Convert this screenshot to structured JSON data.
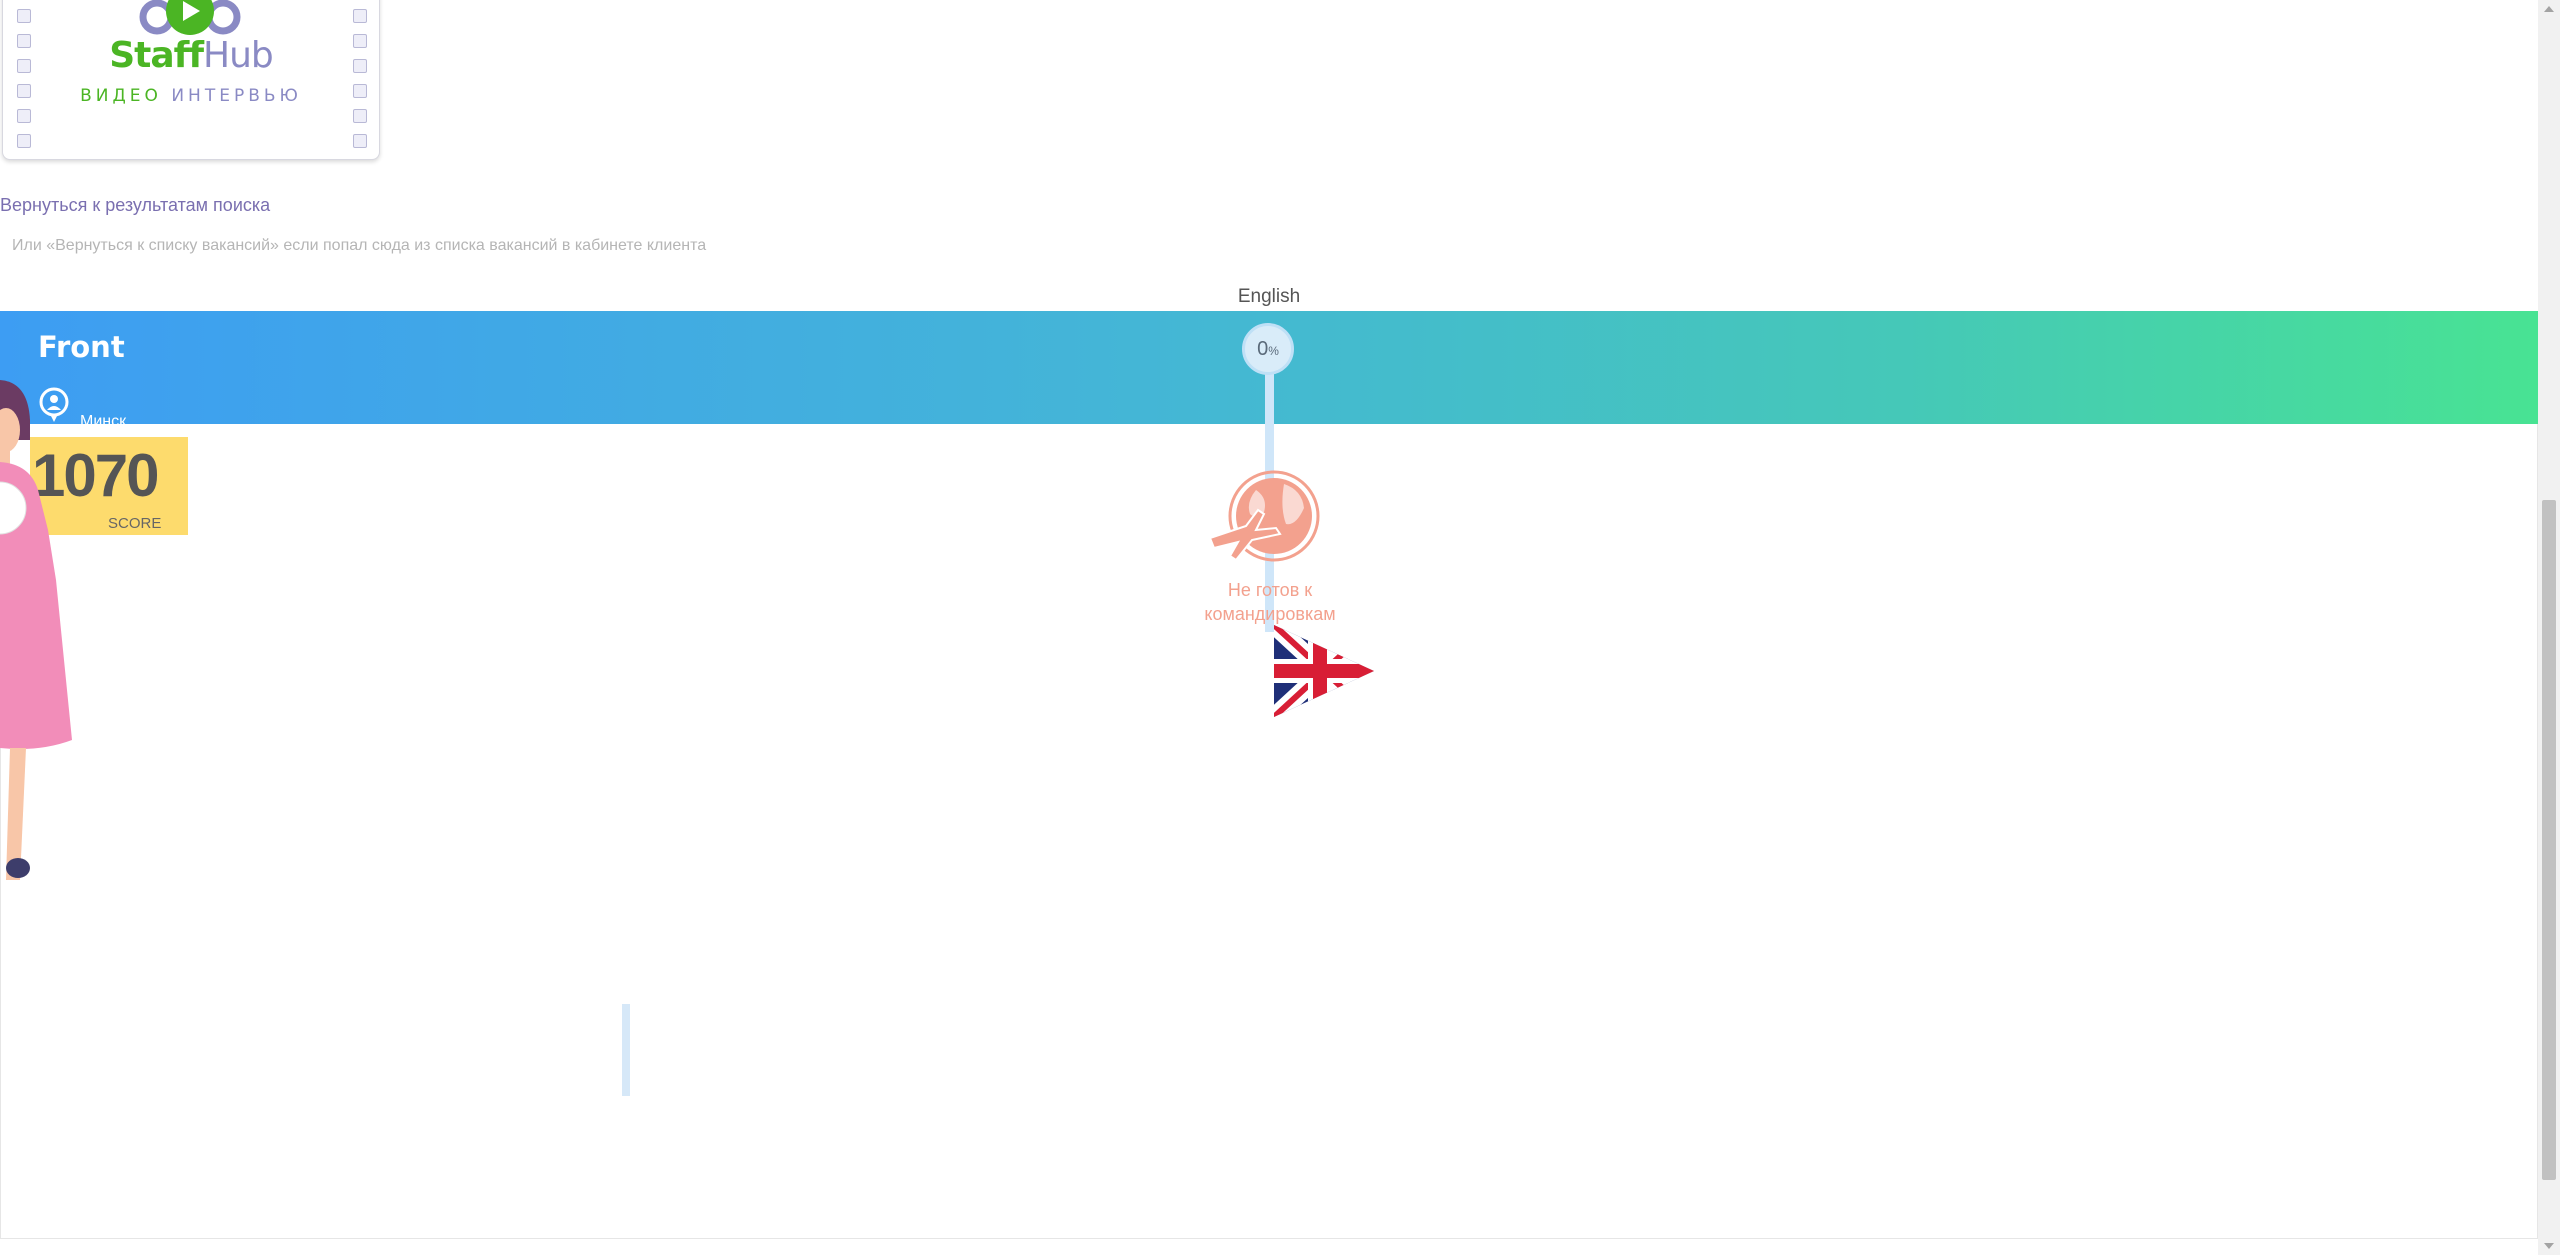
{
  "logo": {
    "brand_staff": "Staff",
    "brand_hub": "Hub",
    "sub_video": "ВИДЕО",
    "sub_interview": "ИНТЕРВЬЮ"
  },
  "back_link": "Вернуться к результатам поиска",
  "hint": "Или «Вернуться к списку вакансий» если попал сюда из списка вакансий в кабинете клиента",
  "language": {
    "label": "English",
    "percent": "0",
    "percent_sign": "%"
  },
  "vacancy": {
    "title": "Front",
    "location": "Минск"
  },
  "score": {
    "value": "1070",
    "label": "SCORE"
  },
  "travel": {
    "text": "Не готов к командировкам"
  },
  "colors": {
    "band_start": "#3d9df3",
    "band_end": "#48e393",
    "score_bg": "#fddb6d",
    "travel_color": "#f3a18e",
    "brand_green": "#4bb524",
    "brand_purple": "#8a8ac4"
  }
}
